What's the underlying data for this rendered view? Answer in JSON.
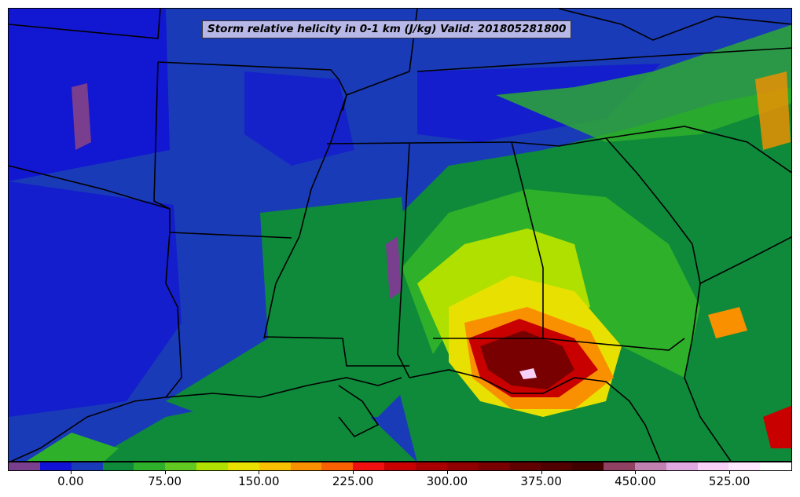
{
  "title": "Storm relative helicity in 0-1 km (J/kg) Valid: 201805281800",
  "colorbar": {
    "colors": [
      "#7a3e8e",
      "#1212d6",
      "#1a3bb8",
      "#0f8a3a",
      "#2fb02a",
      "#60c820",
      "#b0e000",
      "#e8e000",
      "#f8c000",
      "#f89000",
      "#f86000",
      "#f01010",
      "#c80000",
      "#a80000",
      "#900000",
      "#780000",
      "#600000",
      "#500000",
      "#400000",
      "#904060",
      "#c080b0",
      "#e0a8e0",
      "#f8d0f8",
      "#ffe8ff",
      "#ffffff"
    ],
    "ticks": [
      "0.00",
      "75.00",
      "150.00",
      "225.00",
      "300.00",
      "375.00",
      "450.00",
      "525.00"
    ],
    "tick_values": [
      0,
      75,
      150,
      225,
      300,
      375,
      450,
      525
    ],
    "range": [
      -50,
      575
    ]
  },
  "legend_icon": "colorbar-swatch"
}
